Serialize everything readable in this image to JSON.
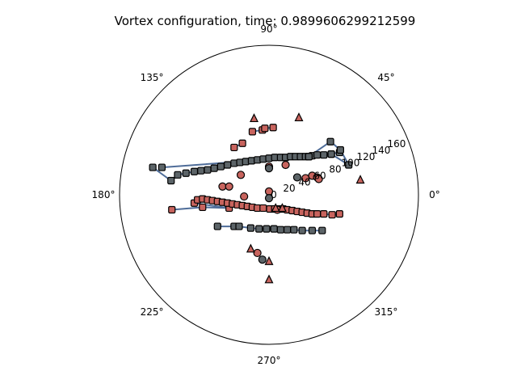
{
  "chart_data": {
    "type": "scatter",
    "projection": "polar",
    "title": "Vortex configuration, time: 0.9899606299212599",
    "angle_labels": [
      "0°",
      "45°",
      "90°",
      "135°",
      "180°",
      "225°",
      "270°",
      "315°"
    ],
    "angle_ticks_deg": [
      0,
      45,
      90,
      135,
      180,
      225,
      270,
      315
    ],
    "radial_labels": [
      "0",
      "20",
      "40",
      "60",
      "80",
      "100",
      "120",
      "140",
      "160"
    ],
    "radial_ticks": [
      0,
      20,
      40,
      60,
      80,
      100,
      120,
      140,
      160
    ],
    "r_max": 180,
    "radial_label_angle_deg": 22.5,
    "grid": false,
    "colors": {
      "red_fill": "#c8645e",
      "dark_fill": "#5c6468",
      "edge": "#000000",
      "line": "#4f6d99"
    },
    "series": [
      {
        "marker": "square",
        "color": "dark_fill",
        "connected": true,
        "points": [
          [
            -62,
            -38
          ],
          [
            -42,
            -38
          ],
          [
            -36,
            -38
          ],
          [
            -22,
            -40
          ],
          [
            -12,
            -41
          ],
          [
            -3,
            -41
          ],
          [
            6,
            -41
          ],
          [
            14,
            -42
          ],
          [
            22,
            -42
          ],
          [
            30,
            -42
          ],
          [
            40,
            -43
          ],
          [
            52,
            -43
          ],
          [
            64,
            -43
          ]
        ]
      },
      {
        "marker": "square",
        "color": "dark_fill",
        "connected": true,
        "points": [
          [
            -140,
            33
          ],
          [
            -118,
            17
          ],
          [
            -110,
            24
          ],
          [
            -100,
            26
          ],
          [
            -90,
            28
          ],
          [
            -82,
            29
          ],
          [
            -74,
            30
          ],
          [
            -66,
            32
          ],
          [
            -58,
            34
          ],
          [
            -50,
            36
          ],
          [
            -42,
            38
          ],
          [
            -35,
            39
          ],
          [
            -28,
            40
          ],
          [
            -21,
            41
          ],
          [
            -14,
            42
          ],
          [
            -7,
            43
          ],
          [
            0,
            44
          ],
          [
            7,
            45
          ],
          [
            14,
            45
          ],
          [
            20,
            45
          ],
          [
            26,
            46
          ],
          [
            32,
            46
          ],
          [
            38,
            46
          ],
          [
            44,
            46
          ],
          [
            52,
            47
          ],
          [
            58,
            48
          ],
          [
            66,
            48
          ],
          [
            75,
            49
          ],
          [
            85,
            51
          ],
          [
            48,
            46
          ],
          [
            -129,
            33
          ]
        ]
      },
      {
        "marker": "square",
        "color": "dark_fill",
        "connected": true,
        "points": [
          [
            48,
            46
          ],
          [
            74,
            64
          ],
          [
            86,
            54
          ],
          [
            96,
            36
          ],
          [
            75,
            49
          ]
        ]
      },
      {
        "marker": "square",
        "color": "red_fill",
        "connected": true,
        "points": [
          [
            -42,
            57
          ],
          [
            -32,
            62
          ]
        ]
      },
      {
        "marker": "square",
        "color": "red_fill",
        "connected": true,
        "points": [
          [
            -20,
            76
          ],
          [
            -8,
            78
          ]
        ]
      },
      {
        "marker": "square",
        "color": "red_fill",
        "connected": true,
        "points": [
          [
            -5,
            80
          ],
          [
            5,
            81
          ]
        ]
      },
      {
        "marker": "square",
        "color": "red_fill",
        "connected": true,
        "points": [
          [
            -117,
            -18
          ],
          [
            -80,
            -15
          ],
          [
            -48,
            -16
          ],
          [
            -90,
            -10
          ],
          [
            -86,
            -6
          ],
          [
            -80,
            -5
          ],
          [
            -74,
            -6
          ],
          [
            -68,
            -7
          ],
          [
            -62,
            -8
          ],
          [
            -56,
            -9
          ],
          [
            -50,
            -10
          ],
          [
            -44,
            -11
          ],
          [
            -38,
            -12
          ],
          [
            -32,
            -13
          ],
          [
            -26,
            -14
          ],
          [
            -20,
            -15
          ],
          [
            -14,
            -16
          ],
          [
            -7,
            -16
          ],
          [
            1,
            -17
          ],
          [
            7,
            -17
          ],
          [
            12,
            -17
          ],
          [
            17,
            -17
          ],
          [
            22,
            -18
          ],
          [
            28,
            -19
          ],
          [
            34,
            -20
          ],
          [
            40,
            -21
          ],
          [
            46,
            -22
          ],
          [
            52,
            -23
          ],
          [
            58,
            -23
          ],
          [
            66,
            -23
          ],
          [
            76,
            -24
          ],
          [
            85,
            -23
          ]
        ]
      },
      {
        "marker": "circle",
        "color": "red_fill",
        "points": [
          [
            0,
            4
          ],
          [
            -30,
            -2
          ],
          [
            -56,
            10
          ],
          [
            -48,
            10
          ],
          [
            0,
            34
          ],
          [
            -34,
            24
          ],
          [
            20,
            36
          ],
          [
            44,
            20
          ],
          [
            52,
            23
          ],
          [
            58,
            21
          ],
          [
            60,
            19
          ],
          [
            10,
            -18
          ],
          [
            -14,
            -70
          ]
        ]
      },
      {
        "marker": "circle",
        "color": "dark_fill",
        "points": [
          [
            0,
            -4
          ],
          [
            34,
            21
          ],
          [
            0,
            32
          ],
          [
            -8,
            -78
          ]
        ]
      },
      {
        "marker": "triangle",
        "color": "red_fill",
        "points": [
          [
            -18,
            92
          ],
          [
            36,
            93
          ],
          [
            8,
            -16
          ],
          [
            16,
            -16
          ],
          [
            -22,
            -65
          ],
          [
            0,
            -80
          ],
          [
            0,
            -102
          ],
          [
            110,
            18
          ]
        ]
      }
    ]
  }
}
